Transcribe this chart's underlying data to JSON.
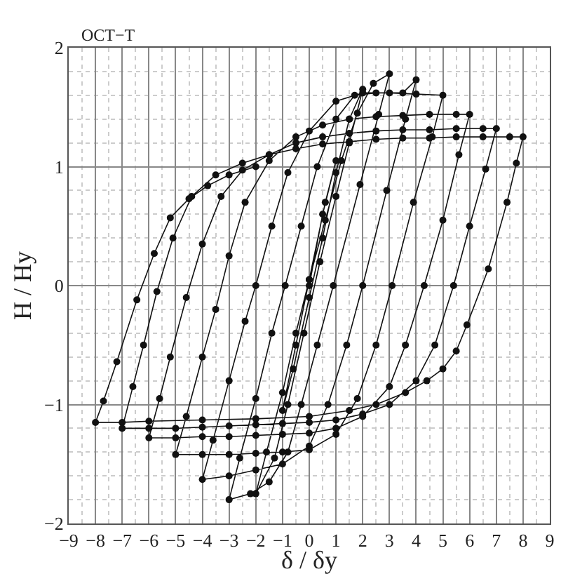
{
  "chart_data": {
    "type": "line",
    "title": "OCT−T",
    "xlabel": "δ / δy",
    "ylabel": "H / Hy",
    "xlim": [
      -9,
      9
    ],
    "xticks": [
      -9,
      -8,
      -7,
      -6,
      -5,
      -4,
      -3,
      -2,
      -1,
      0,
      1,
      2,
      3,
      4,
      5,
      6,
      7,
      8,
      9
    ],
    "ylim": [
      -2,
      2
    ],
    "yticks": [
      -2,
      -1,
      0,
      1,
      2
    ],
    "grid": true,
    "marker": "circle",
    "line_style": "solid",
    "series": [
      {
        "color": "#111111",
        "x": [
          0,
          0.5,
          1,
          0.6,
          0,
          -0.5,
          -1,
          -0.6,
          0,
          0.5,
          1,
          1.5,
          2,
          1.5,
          1,
          0.4,
          -0.2,
          -0.8,
          -1.3,
          -2,
          -1.6,
          -1,
          -0.5,
          0,
          0.6,
          1.2,
          1.8,
          2.4,
          3,
          2.6,
          1.9,
          0.9,
          0.3,
          -0.3,
          -0.8,
          -1.5,
          -2.2,
          -3,
          -2.6,
          -2,
          -1.4,
          -0.9,
          -0.3,
          0.3,
          1,
          1.7,
          2.5,
          3.5,
          4,
          3.6,
          2.9,
          2,
          1.4,
          0.7,
          0,
          -1,
          -2,
          -3,
          -4,
          -3.6,
          -3,
          -2.4,
          -2,
          -1.4,
          -0.8,
          0,
          1,
          2,
          3,
          4,
          5,
          4.6,
          3.9,
          3.1,
          2.5,
          1.8,
          1,
          0,
          -1,
          -2,
          -3,
          -4,
          -5,
          -4.6,
          -4,
          -3.5,
          -3,
          -2.4,
          -1.5,
          -0.5,
          0.5,
          1.5,
          2.5,
          3.5,
          4.5,
          5.5,
          6,
          5.6,
          5,
          4.3,
          3.6,
          3,
          2,
          1,
          0,
          -1,
          -2,
          -3,
          -4,
          -5,
          -6,
          -5.6,
          -5.2,
          -4.6,
          -4,
          -3.3,
          -2.5,
          -1.5,
          -0.5,
          0.5,
          1.5,
          2.5,
          3.5,
          4.5,
          5.5,
          6.5,
          7,
          6.6,
          6,
          5.4,
          4.7,
          4,
          3,
          2,
          1,
          0,
          -1,
          -2,
          -3,
          -4,
          -5,
          -6,
          -7,
          -6.6,
          -6.2,
          -5.7,
          -5.1,
          -4.4,
          -3.5,
          -2.5,
          -1.5,
          -0.5,
          0.5,
          1.5,
          2.5,
          3.5,
          4.5,
          5.5,
          6.5,
          7.5,
          8,
          7.75,
          7.4,
          6.7,
          5.9,
          5.5,
          5,
          4.4,
          3.6,
          2.5,
          1.5,
          0,
          -2,
          -4,
          -6,
          -7,
          -8,
          -7.7,
          -7.2,
          -6.45,
          -5.8,
          -5.2,
          -4.5,
          -3.8,
          -3,
          -2
        ],
        "values": [
          0,
          0.6,
          1.05,
          0.7,
          0.05,
          -0.5,
          -1.05,
          -0.7,
          -0.1,
          0.4,
          0.95,
          1.4,
          1.65,
          1.2,
          0.75,
          0.2,
          -0.4,
          -1,
          -1.45,
          -1.75,
          -1.4,
          -0.9,
          -0.4,
          0.05,
          0.55,
          1.05,
          1.45,
          1.7,
          1.78,
          1.44,
          0.85,
          0,
          -0.5,
          -1,
          -1.4,
          -1.65,
          -1.75,
          -1.8,
          -1.45,
          -0.95,
          -0.4,
          0,
          0.5,
          1,
          1.4,
          1.6,
          1.62,
          1.62,
          1.73,
          1.4,
          0.8,
          0,
          -0.5,
          -1,
          -1.35,
          -1.5,
          -1.55,
          -1.6,
          -1.63,
          -1.3,
          -0.8,
          -0.3,
          0,
          0.5,
          0.95,
          1.3,
          1.55,
          1.62,
          1.62,
          1.61,
          1.6,
          1.25,
          0.7,
          0,
          -0.5,
          -0.95,
          -1.25,
          -1.38,
          -1.4,
          -1.41,
          -1.42,
          -1.42,
          -1.42,
          -1.1,
          -0.6,
          -0.2,
          0.25,
          0.7,
          1.05,
          1.25,
          1.35,
          1.4,
          1.42,
          1.43,
          1.44,
          1.44,
          1.44,
          1.1,
          0.55,
          0,
          -0.5,
          -0.85,
          -1.1,
          -1.2,
          -1.24,
          -1.25,
          -1.26,
          -1.27,
          -1.27,
          -1.28,
          -1.28,
          -0.95,
          -0.6,
          -0.1,
          0.35,
          0.75,
          0.97,
          1.1,
          1.2,
          1.25,
          1.28,
          1.3,
          1.31,
          1.31,
          1.32,
          1.32,
          1.32,
          0.98,
          0.5,
          0,
          -0.5,
          -0.8,
          -1,
          -1.08,
          -1.13,
          -1.15,
          -1.16,
          -1.17,
          -1.18,
          -1.19,
          -1.2,
          -1.2,
          -1.2,
          -0.85,
          -0.5,
          -0.05,
          0.4,
          0.75,
          0.93,
          1.03,
          1.1,
          1.15,
          1.19,
          1.21,
          1.23,
          1.24,
          1.24,
          1.25,
          1.25,
          1.25,
          1.25,
          1.03,
          0.7,
          0.14,
          -0.33,
          -0.55,
          -0.7,
          -0.8,
          -0.9,
          -1,
          -1.05,
          -1.1,
          -1.12,
          -1.13,
          -1.14,
          -1.15,
          -1.15,
          -0.97,
          -0.64,
          -0.12,
          0.27,
          0.57,
          0.73,
          0.84,
          0.93,
          1
        ]
      }
    ]
  }
}
